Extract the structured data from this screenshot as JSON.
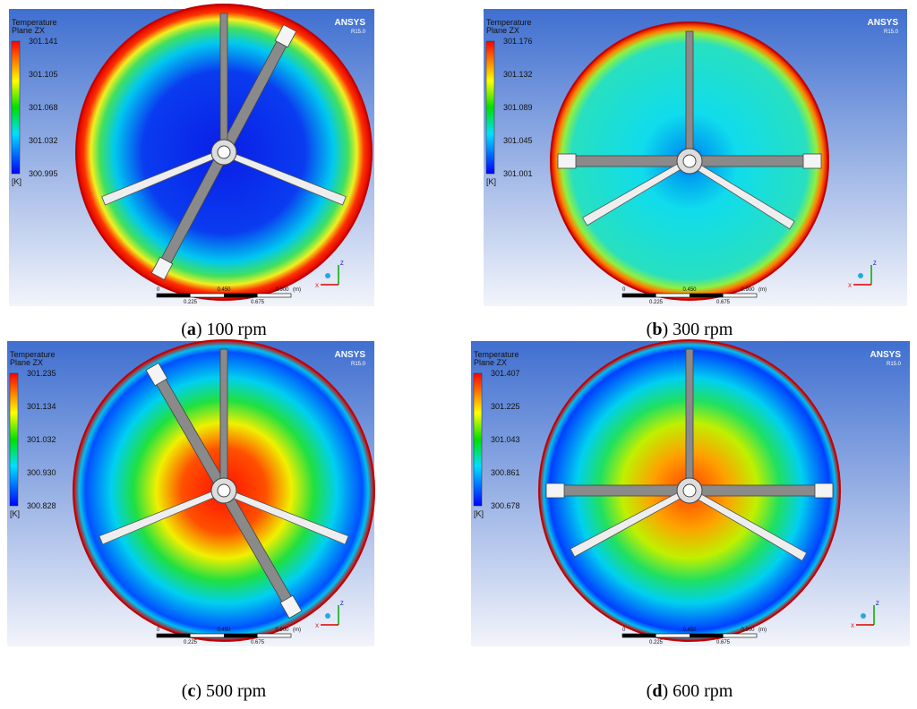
{
  "panels": [
    {
      "legend_title": "Temperature",
      "plane": "Plane ZX",
      "levels": [
        "301.141",
        "301.105",
        "301.068",
        "301.032",
        "300.995"
      ],
      "unit": "[K]",
      "brand": "ANSYS",
      "version": "R15.0",
      "scale_top": [
        "0",
        "0.450",
        "0.900",
        "(m)"
      ],
      "scale_bottom": [
        "0.225",
        "0.675"
      ],
      "axes": [
        "Z",
        "X"
      ],
      "caption": {
        "prefix": "(",
        "letter": "a",
        "suffix": ") 100 rpm"
      }
    },
    {
      "legend_title": "Temperature",
      "plane": "Plane ZX",
      "levels": [
        "301.176",
        "301.132",
        "301.089",
        "301.045",
        "301.001"
      ],
      "unit": "[K]",
      "brand": "ANSYS",
      "version": "R15.0",
      "scale_top": [
        "0",
        "0.450",
        "0.900",
        "(m)"
      ],
      "scale_bottom": [
        "0.225",
        "0.675"
      ],
      "axes": [
        "Z",
        "X"
      ],
      "caption": {
        "prefix": "(",
        "letter": "b",
        "suffix": ") 300 rpm"
      }
    },
    {
      "legend_title": "Temperature",
      "plane": "Plane ZX",
      "levels": [
        "301.235",
        "301.134",
        "301.032",
        "300.930",
        "300.828"
      ],
      "unit": "[K]",
      "brand": "ANSYS",
      "version": "R15.0",
      "scale_top": [
        "0",
        "0.450",
        "0.900",
        "(m)"
      ],
      "scale_bottom": [
        "0.225",
        "0.675"
      ],
      "axes": [
        "Z",
        "X"
      ],
      "caption": {
        "prefix": "(",
        "letter": "c",
        "suffix": ") 500 rpm"
      }
    },
    {
      "legend_title": "Temperature",
      "plane": "Plane ZX",
      "levels": [
        "301.407",
        "301.225",
        "301.043",
        "300.861",
        "300.678"
      ],
      "unit": "[K]",
      "brand": "ANSYS",
      "version": "R15.0",
      "scale_top": [
        "0",
        "0.450",
        "0.900",
        "(m)"
      ],
      "scale_bottom": [
        "0.225",
        "0.675"
      ],
      "axes": [
        "Z",
        "X"
      ],
      "caption": {
        "prefix": "(",
        "letter": "d",
        "suffix": ") 600 rpm"
      }
    }
  ]
}
